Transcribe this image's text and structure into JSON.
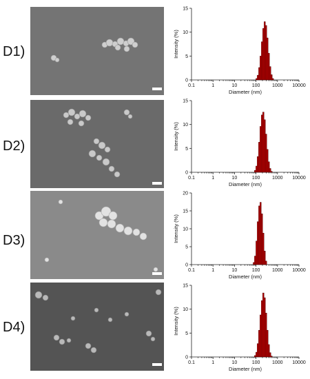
{
  "panels": [
    {
      "label": "D1)"
    },
    {
      "label": "D2)"
    },
    {
      "label": "D3)"
    },
    {
      "label": "D4)"
    }
  ],
  "colors": {
    "bar_fill": "#b30000",
    "bar_edge": "#3a0000",
    "sem_background": "#6f6f6f"
  },
  "chart_data": [
    {
      "type": "bar",
      "xlabel": "Diameter (nm)",
      "ylabel": "Intensity (%)",
      "x_scale": "log",
      "xlim": [
        0.1,
        10000
      ],
      "ylim": [
        0,
        15
      ],
      "x_ticks": [
        "0.1",
        "1",
        "10",
        "100",
        "1000",
        "10000"
      ],
      "y_ticks": [
        "0",
        "5",
        "10",
        "15"
      ],
      "x": [
        106,
        122,
        142,
        164,
        190,
        220,
        255,
        295,
        342,
        396,
        459,
        531,
        615
      ],
      "values": [
        0.3,
        1.0,
        2.6,
        5.0,
        8.0,
        10.8,
        12.2,
        11.4,
        8.8,
        5.6,
        2.8,
        1.1,
        0.3
      ]
    },
    {
      "type": "bar",
      "xlabel": "Diameter (nm)",
      "ylabel": "Intensity (%)",
      "x_scale": "log",
      "xlim": [
        0.1,
        10000
      ],
      "ylim": [
        0,
        15
      ],
      "x_ticks": [
        "0.1",
        "1",
        "10",
        "100",
        "1000",
        "10000"
      ],
      "y_ticks": [
        "0",
        "5",
        "10",
        "15"
      ],
      "x": [
        91,
        106,
        122,
        142,
        164,
        190,
        220,
        255,
        295,
        342,
        396,
        459,
        531
      ],
      "values": [
        0.4,
        1.3,
        3.3,
        6.3,
        9.6,
        12.0,
        12.6,
        11.0,
        8.0,
        4.8,
        2.2,
        0.8,
        0.2
      ]
    },
    {
      "type": "bar",
      "xlabel": "Diameter (nm)",
      "ylabel": "Intensity (%)",
      "x_scale": "log",
      "xlim": [
        0.1,
        10000
      ],
      "ylim": [
        0,
        20
      ],
      "x_ticks": [
        "0.1",
        "1",
        "10",
        "100",
        "1000",
        "10000"
      ],
      "y_ticks": [
        "0",
        "5",
        "10",
        "15",
        "20"
      ],
      "x": [
        79,
        91,
        106,
        122,
        142,
        164,
        190,
        220,
        255,
        295
      ],
      "values": [
        0.6,
        2.4,
        6.6,
        12.0,
        16.4,
        17.4,
        14.2,
        8.8,
        3.8,
        1.0
      ]
    },
    {
      "type": "bar",
      "xlabel": "Diameter (nm)",
      "ylabel": "Intensity (%)",
      "x_scale": "log",
      "xlim": [
        0.1,
        10000
      ],
      "ylim": [
        0,
        15
      ],
      "x_ticks": [
        "0.1",
        "1",
        "10",
        "100",
        "1000",
        "10000"
      ],
      "y_ticks": [
        "0",
        "5",
        "10",
        "15"
      ],
      "x": [
        91,
        106,
        122,
        142,
        164,
        190,
        220,
        255,
        295,
        342,
        396,
        459,
        531
      ],
      "values": [
        0.3,
        1.0,
        2.8,
        5.6,
        8.8,
        11.8,
        13.4,
        12.4,
        9.2,
        5.6,
        2.6,
        0.9,
        0.2
      ]
    }
  ]
}
